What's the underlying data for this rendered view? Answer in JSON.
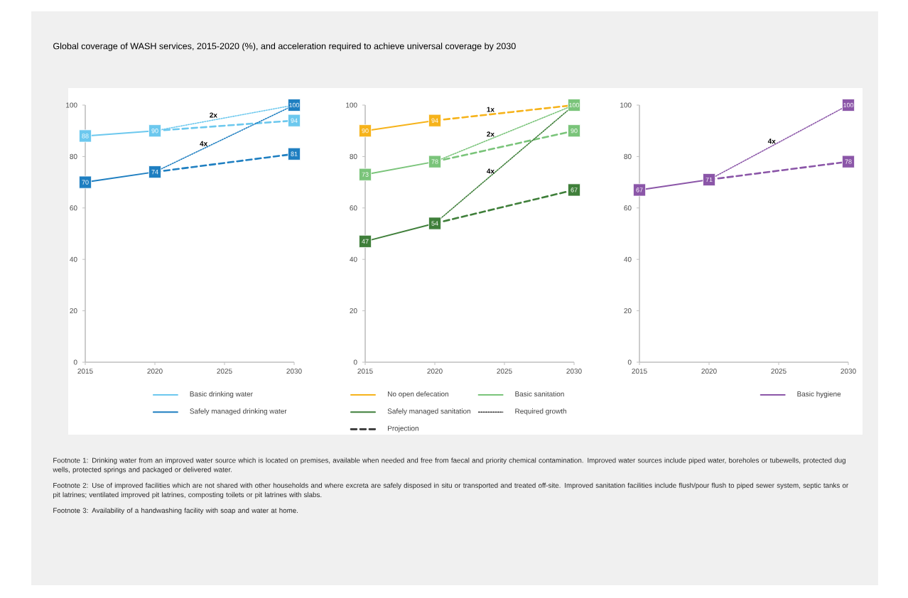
{
  "chart_data": [
    {
      "type": "line",
      "title": "Global coverage of WASH services, 2015-2020 (%), and acceleration required to achieve universal coverage by 2030",
      "annotations": [
        "Footnote 1: Drinking water from an improved water source which is located on premises, available when needed and free from faecal and priority chemical contamination. Improved water sources include piped water, boreholes or tubewells, protected dug wells, protected springs and packaged or delivered water.",
        "Footnote 2: Use of improved facilities which are not shared with other households and where excreta are safely disposed in situ or transported and treated off-site. Improved sanitation facilities include flush/pour flush to piped sewer system, septic tanks or pit latrines; ventilated improved pit latrines, composting toilets or pit latrines with slabs.",
        "Footnote 3: Availability of a handwashing facility with soap and water at home.",
        {
          "text": "2x",
          "x": 2024.2,
          "y": 94.2
        },
        {
          "text": "4x",
          "x": 2023.5,
          "y": 83.1
        }
      ],
      "x": [
        2015,
        2020,
        2025,
        2030
      ],
      "xlim": [
        2015,
        2030
      ],
      "ylim": [
        0,
        100
      ],
      "xticks": [
        2015,
        2020,
        2025,
        2030
      ],
      "yticks": [
        0,
        20,
        40,
        60,
        80,
        100
      ],
      "legend": "bottom",
      "series": [
        {
          "name": "Basic drinking water",
          "color": "#6cc8ee",
          "line_style": "solid",
          "marker": "square",
          "values": [
            88,
            90,
            null,
            null
          ],
          "value_labels": [
            "88",
            "90",
            null,
            null
          ]
        },
        {
          "color": "#6cc8ee",
          "line_style": "dashed",
          "marker": "square",
          "values": [
            null,
            90,
            null,
            94
          ],
          "value_labels": [
            null,
            null,
            null,
            "94"
          ]
        },
        {
          "color": "#6cc8ee",
          "line_style": "dotted",
          "values": [
            null,
            90,
            null,
            100
          ],
          "value_labels": [
            null,
            null,
            null,
            null
          ]
        },
        {
          "name": "Safely managed drinking water",
          "color": "#1f7fc1",
          "line_style": "solid",
          "marker": "square",
          "values": [
            70,
            74,
            null,
            null
          ],
          "value_labels": [
            "70",
            "74",
            null,
            null
          ]
        },
        {
          "color": "#1f7fc1",
          "line_style": "dashed",
          "marker": "square",
          "values": [
            null,
            74,
            null,
            81
          ],
          "value_labels": [
            null,
            null,
            null,
            "81"
          ]
        },
        {
          "color": "#1f7fc1",
          "line_style": "dotted",
          "marker": "square",
          "values": [
            null,
            74,
            null,
            100
          ],
          "value_labels": [
            null,
            null,
            null,
            "100"
          ]
        }
      ]
    },
    {
      "type": "line",
      "annotations": [
        {
          "text": "1x",
          "x": 2024,
          "y": 96.4
        },
        {
          "text": "2x",
          "x": 2024,
          "y": 86.8
        },
        {
          "text": "4x",
          "x": 2024,
          "y": 72.4
        }
      ],
      "x": [
        2015,
        2020,
        2025,
        2030
      ],
      "xlim": [
        2015,
        2030
      ],
      "ylim": [
        0,
        100
      ],
      "xticks": [
        2015,
        2020,
        2025,
        2030
      ],
      "yticks": [
        0,
        20,
        40,
        60,
        80,
        100
      ],
      "legend": "bottom",
      "series": [
        {
          "name": "No open defecation",
          "color": "#f6b31b",
          "line_style": "solid",
          "marker": "square",
          "values": [
            90,
            94,
            null,
            null
          ],
          "value_labels": [
            "90",
            "94",
            null,
            null
          ]
        },
        {
          "color": "#f6b31b",
          "line_style": "dashed",
          "values": [
            null,
            94,
            null,
            100
          ],
          "value_labels": [
            null,
            null,
            null,
            null
          ]
        },
        {
          "name": "Basic sanitation",
          "color": "#7ac47a",
          "line_style": "solid",
          "marker": "square",
          "values": [
            73,
            78,
            null,
            null
          ],
          "value_labels": [
            "73",
            "78",
            null,
            null
          ]
        },
        {
          "color": "#7ac47a",
          "line_style": "dashed",
          "marker": "square",
          "values": [
            null,
            78,
            null,
            90
          ],
          "value_labels": [
            null,
            null,
            null,
            "90"
          ]
        },
        {
          "color": "#7ac47a",
          "line_style": "dotted",
          "marker": "square",
          "values": [
            null,
            78,
            null,
            100
          ],
          "value_labels": [
            null,
            null,
            null,
            "100"
          ]
        },
        {
          "name": "Safely managed sanitation",
          "color": "#3f7f3a",
          "line_style": "solid",
          "marker": "square",
          "values": [
            47,
            54,
            null,
            null
          ],
          "value_labels": [
            "47",
            "54",
            null,
            null
          ]
        },
        {
          "color": "#3f7f3a",
          "line_style": "dashed",
          "marker": "square",
          "values": [
            null,
            54,
            null,
            67
          ],
          "value_labels": [
            null,
            null,
            null,
            "67"
          ]
        },
        {
          "color": "#3f7f3a",
          "line_style": "dotted",
          "values": [
            null,
            54,
            null,
            100
          ],
          "value_labels": [
            null,
            null,
            null,
            null
          ]
        },
        {
          "name": "Required growth",
          "color": "#333333",
          "line_style": "dotted",
          "values": [
            null,
            null,
            null,
            null
          ]
        },
        {
          "name": "Projection",
          "color": "#333333",
          "line_style": "dashed",
          "values": [
            null,
            null,
            null,
            null
          ]
        }
      ]
    },
    {
      "type": "line",
      "annotations": [
        {
          "text": "4x",
          "x": 2024.5,
          "y": 84.05
        }
      ],
      "x": [
        2015,
        2020,
        2025,
        2030
      ],
      "xlim": [
        2015,
        2030
      ],
      "ylim": [
        0,
        100
      ],
      "xticks": [
        2015,
        2020,
        2025,
        2030
      ],
      "yticks": [
        0,
        20,
        40,
        60,
        80,
        100
      ],
      "legend": "bottom",
      "series": [
        {
          "name": "Basic hygiene",
          "color": "#8b56a8",
          "line_style": "solid",
          "marker": "square",
          "values": [
            67,
            71,
            null,
            null
          ],
          "value_labels": [
            "67",
            "71",
            null,
            null
          ]
        },
        {
          "color": "#8b56a8",
          "line_style": "dashed",
          "marker": "square",
          "values": [
            null,
            71,
            null,
            78
          ],
          "value_labels": [
            null,
            null,
            null,
            "78"
          ]
        },
        {
          "color": "#8b56a8",
          "line_style": "dotted",
          "marker": "square",
          "values": [
            null,
            71,
            null,
            100
          ],
          "value_labels": [
            null,
            null,
            null,
            "100"
          ]
        }
      ]
    }
  ]
}
